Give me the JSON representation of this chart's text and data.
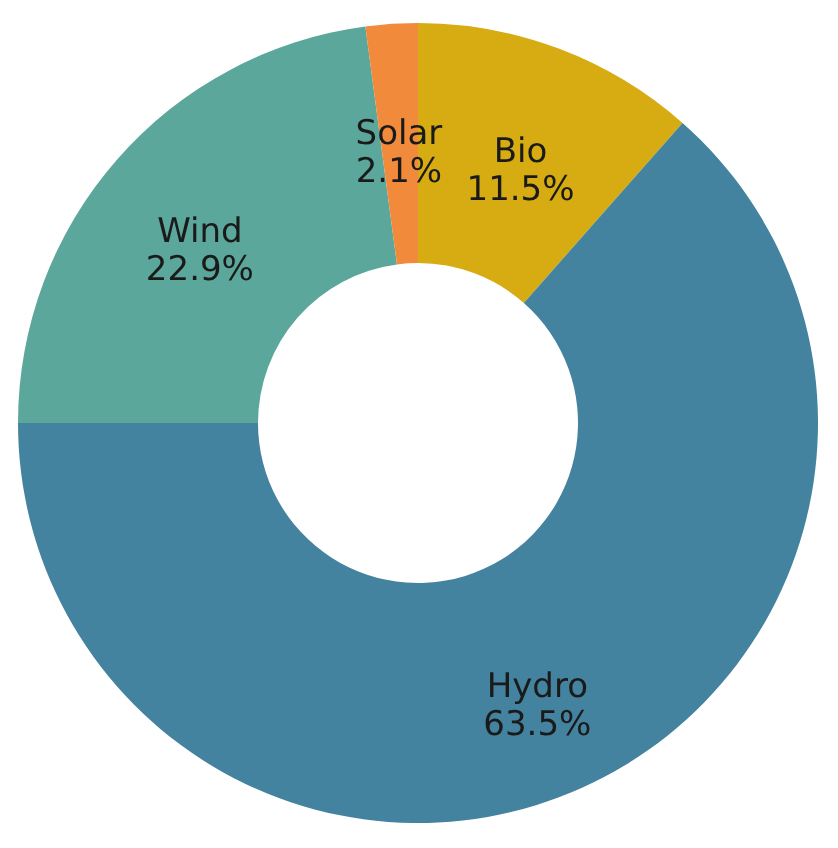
{
  "chart_data": {
    "type": "donut",
    "categories": [
      "Bio",
      "Hydro",
      "Wind",
      "Solar"
    ],
    "values": [
      11.5,
      63.5,
      22.9,
      2.1
    ],
    "value_labels": [
      "11.5%",
      "63.5%",
      "22.9%",
      "2.1%"
    ],
    "colors": [
      "#d6ac12",
      "#44839f",
      "#5ba79b",
      "#f28a3c"
    ],
    "legend": false
  }
}
